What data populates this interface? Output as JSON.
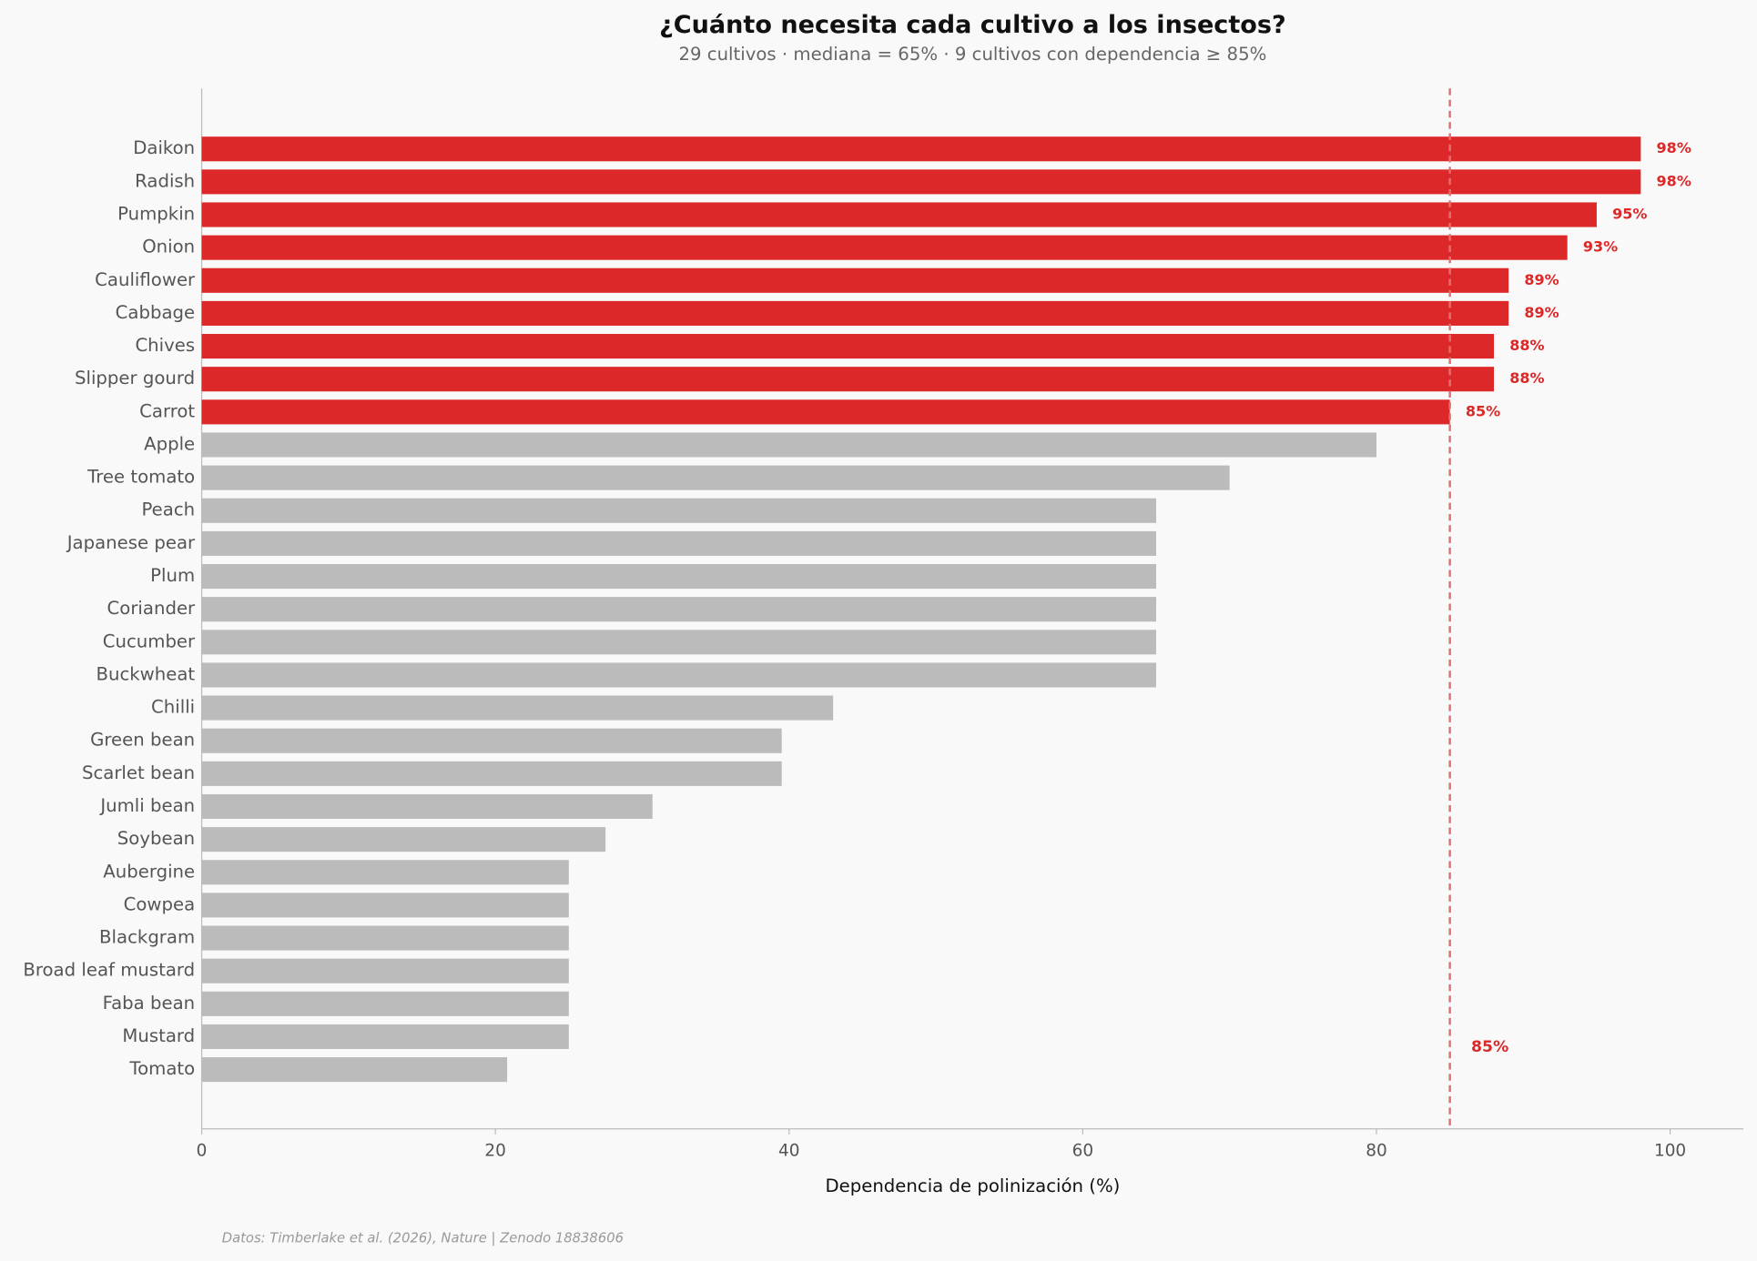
{
  "chart_data": {
    "type": "bar",
    "orientation": "horizontal",
    "title": "¿Cuánto necesita cada cultivo a los insectos?",
    "subtitle": "29 cultivos · mediana = 65% · 9 cultivos con dependencia ≥ 85%",
    "xlabel": "Dependencia de polinización (%)",
    "source": "Datos: Timberlake et al. (2026), Nature | Zenodo 18838606",
    "categories": [
      "Daikon",
      "Radish",
      "Pumpkin",
      "Onion",
      "Cauliflower",
      "Cabbage",
      "Chives",
      "Slipper gourd",
      "Carrot",
      "Apple",
      "Tree tomato",
      "Peach",
      "Japanese pear",
      "Plum",
      "Coriander",
      "Cucumber",
      "Buckwheat",
      "Chilli",
      "Green bean",
      "Scarlet bean",
      "Jumli bean",
      "Soybean",
      "Aubergine",
      "Cowpea",
      "Blackgram",
      "Broad leaf mustard",
      "Faba bean",
      "Mustard",
      "Tomato"
    ],
    "values": [
      98,
      98,
      95,
      93,
      89,
      89,
      88,
      88,
      85,
      80,
      70,
      65,
      65,
      65,
      65,
      65,
      65,
      43,
      39.5,
      39.5,
      30.7,
      27.5,
      25,
      25,
      25,
      25,
      25,
      25,
      20.8
    ],
    "value_labels": [
      "98%",
      "98%",
      "95%",
      "93%",
      "89%",
      "89%",
      "88%",
      "88%",
      "85%",
      null,
      null,
      null,
      null,
      null,
      null,
      null,
      null,
      null,
      null,
      null,
      null,
      null,
      null,
      null,
      null,
      null,
      null,
      null,
      null
    ],
    "highlight_color": "#dc2828",
    "base_color": "#bbbbbb",
    "threshold": {
      "value": 85,
      "label": "85%",
      "color": "#e07070"
    },
    "xlim": [
      0,
      105
    ],
    "xticks": [
      0,
      20,
      40,
      60,
      80,
      100
    ]
  }
}
